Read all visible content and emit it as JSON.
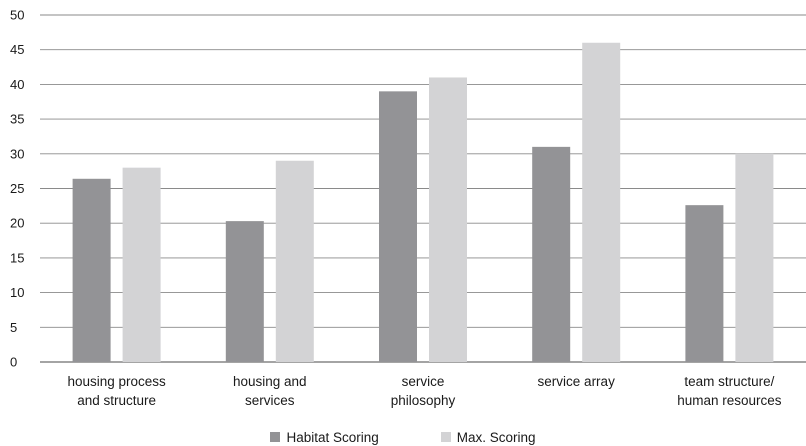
{
  "chart_data": {
    "type": "bar",
    "title": "",
    "xlabel": "",
    "ylabel": "",
    "ylim": [
      0,
      50
    ],
    "yticks": [
      0,
      5,
      10,
      15,
      20,
      25,
      30,
      35,
      40,
      45,
      50
    ],
    "grid": true,
    "legend_position": "bottom-center",
    "categories": [
      [
        "housing process",
        "and structure"
      ],
      [
        "housing and",
        "services"
      ],
      [
        "service",
        "philosophy"
      ],
      [
        "service array"
      ],
      [
        "team structure/",
        "human resources"
      ]
    ],
    "series": [
      {
        "name": "Habitat Scoring",
        "color": "#939396",
        "values": [
          26.4,
          20.3,
          39.0,
          31.0,
          22.6
        ]
      },
      {
        "name": "Max. Scoring",
        "color": "#d3d3d5",
        "values": [
          28.0,
          29.0,
          41.0,
          46.0,
          30.0
        ]
      }
    ]
  }
}
